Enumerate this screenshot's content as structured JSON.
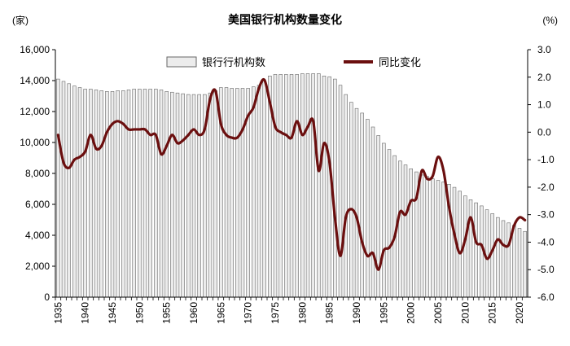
{
  "chart_data": {
    "type": "bar+line",
    "title": "美国银行机构数量变化",
    "left_unit": "(家)",
    "right_unit": "(%)",
    "left_ylim": [
      0,
      16000
    ],
    "right_ylim": [
      -6.0,
      3.0
    ],
    "left_ticks": [
      "0",
      "2,000",
      "4,000",
      "6,000",
      "8,000",
      "10,000",
      "12,000",
      "14,000",
      "16,000"
    ],
    "right_ticks": [
      "-6.0",
      "-5.0",
      "-4.0",
      "-3.0",
      "-2.0",
      "-1.0",
      "0.0",
      "1.0",
      "2.0",
      "3.0"
    ],
    "x_ticks": [
      "1935",
      "1940",
      "1945",
      "1950",
      "1955",
      "1960",
      "1965",
      "1970",
      "1975",
      "1980",
      "1985",
      "1990",
      "1995",
      "2000",
      "2005",
      "2010",
      "2015",
      "2020"
    ],
    "grid": false,
    "legend_position": "top",
    "colors": {
      "bars_fill": "#ececec",
      "bars_stroke": "#666666",
      "line": "#6b0f0f"
    },
    "series": [
      {
        "name": "银行行机构数",
        "type": "bar",
        "axis": "left",
        "x": [
          1935,
          1936,
          1937,
          1938,
          1939,
          1940,
          1941,
          1942,
          1943,
          1944,
          1945,
          1946,
          1947,
          1948,
          1949,
          1950,
          1951,
          1952,
          1953,
          1954,
          1955,
          1956,
          1957,
          1958,
          1959,
          1960,
          1961,
          1962,
          1963,
          1964,
          1965,
          1966,
          1967,
          1968,
          1969,
          1970,
          1971,
          1972,
          1973,
          1974,
          1975,
          1976,
          1977,
          1978,
          1979,
          1980,
          1981,
          1982,
          1983,
          1984,
          1985,
          1986,
          1987,
          1988,
          1989,
          1990,
          1991,
          1992,
          1993,
          1994,
          1995,
          1996,
          1997,
          1998,
          1999,
          2000,
          2001,
          2002,
          2003,
          2004,
          2005,
          2006,
          2007,
          2008,
          2009,
          2010,
          2011,
          2012,
          2013,
          2014,
          2015,
          2016,
          2017,
          2018,
          2019,
          2020,
          2021
        ],
        "values": [
          14100,
          13950,
          13800,
          13650,
          13550,
          13450,
          13450,
          13400,
          13350,
          13300,
          13300,
          13350,
          13350,
          13400,
          13450,
          13450,
          13450,
          13450,
          13450,
          13400,
          13300,
          13250,
          13200,
          13150,
          13100,
          13100,
          13100,
          13100,
          13200,
          13350,
          13550,
          13550,
          13500,
          13500,
          13500,
          13500,
          13600,
          13700,
          14000,
          14300,
          14400,
          14400,
          14400,
          14400,
          14400,
          14450,
          14450,
          14450,
          14450,
          14300,
          14250,
          14100,
          13700,
          13100,
          12600,
          12200,
          11900,
          11500,
          11000,
          10450,
          9950,
          9550,
          9150,
          8800,
          8550,
          8300,
          8100,
          7900,
          7800,
          7650,
          7550,
          7450,
          7300,
          7100,
          6850,
          6550,
          6300,
          6100,
          5900,
          5650,
          5400,
          5150,
          4950,
          4800,
          4650,
          4450,
          4250
        ]
      },
      {
        "name": "同比变化",
        "type": "line",
        "axis": "right",
        "x": [
          1935,
          1936,
          1937,
          1938,
          1939,
          1940,
          1941,
          1942,
          1943,
          1944,
          1945,
          1946,
          1947,
          1948,
          1949,
          1950,
          1951,
          1952,
          1953,
          1954,
          1955,
          1956,
          1957,
          1958,
          1959,
          1960,
          1961,
          1962,
          1963,
          1964,
          1965,
          1966,
          1967,
          1968,
          1969,
          1970,
          1971,
          1972,
          1973,
          1974,
          1975,
          1976,
          1977,
          1978,
          1979,
          1980,
          1981,
          1982,
          1983,
          1984,
          1985,
          1986,
          1987,
          1988,
          1989,
          1990,
          1991,
          1992,
          1993,
          1994,
          1995,
          1996,
          1997,
          1998,
          1999,
          2000,
          2001,
          2002,
          2003,
          2004,
          2005,
          2006,
          2007,
          2008,
          2009,
          2010,
          2011,
          2012,
          2013,
          2014,
          2015,
          2016,
          2017,
          2018,
          2019,
          2020,
          2021
        ],
        "values": [
          -0.1,
          -1.1,
          -1.3,
          -1.0,
          -0.9,
          -0.7,
          -0.1,
          -0.6,
          -0.5,
          0.0,
          0.3,
          0.4,
          0.3,
          0.1,
          0.1,
          0.1,
          0.1,
          -0.1,
          -0.1,
          -0.8,
          -0.5,
          -0.1,
          -0.4,
          -0.3,
          -0.1,
          0.1,
          -0.1,
          0.1,
          1.2,
          1.5,
          0.3,
          -0.1,
          -0.2,
          -0.2,
          0.1,
          0.6,
          0.9,
          1.6,
          1.9,
          1.1,
          0.2,
          0.0,
          -0.1,
          -0.2,
          0.4,
          -0.1,
          0.2,
          0.4,
          -1.4,
          -0.4,
          -1.1,
          -3.1,
          -4.5,
          -3.1,
          -2.8,
          -3.1,
          -4.0,
          -4.5,
          -4.4,
          -5.0,
          -4.3,
          -4.2,
          -3.8,
          -2.9,
          -3.0,
          -2.5,
          -2.4,
          -1.4,
          -1.7,
          -1.6,
          -0.9,
          -1.4,
          -2.7,
          -3.7,
          -4.4,
          -3.9,
          -3.1,
          -4.0,
          -4.1,
          -4.6,
          -4.3,
          -3.9,
          -4.1,
          -4.1,
          -3.4,
          -3.1,
          -3.2
        ]
      }
    ]
  }
}
